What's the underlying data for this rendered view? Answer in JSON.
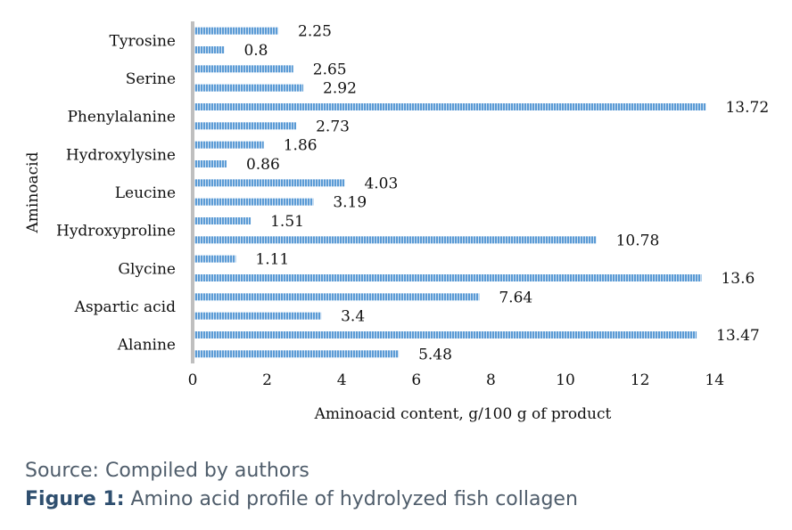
{
  "chart_data": {
    "type": "bar",
    "orientation": "horizontal",
    "xlabel": "Aminoacid content, g/100 g of product",
    "ylabel": "Aminoacid",
    "xlim": [
      0,
      14
    ],
    "xticks": [
      "0",
      "2",
      "4",
      "6",
      "8",
      "10",
      "12",
      "14"
    ],
    "category_labels": [
      "Alanine",
      "Aspartic acid",
      "Glycine",
      "Hydroxyproline",
      "Leucine",
      "Hydroxylysine",
      "Phenylalanine",
      "Serine",
      "Tyrosine"
    ],
    "bars_bottom_to_top": [
      5.48,
      13.47,
      3.4,
      7.64,
      13.6,
      1.11,
      10.78,
      1.51,
      3.19,
      4.03,
      0.86,
      1.86,
      2.73,
      13.72,
      2.92,
      2.65,
      0.8,
      2.25
    ],
    "value_labels_bottom_to_top": [
      "5.48",
      "13.47",
      "3.4",
      "7.64",
      "13.6",
      "1.11",
      "10.78",
      "1.51",
      "3.19",
      "4.03",
      "0.86",
      "1.86",
      "2.73",
      "13.72",
      "2.92",
      "2.65",
      "0.8",
      "2.25"
    ],
    "bar_color": "#5b9bd5",
    "axis_color": "#bfbfbf",
    "grid": false,
    "legend": "none"
  },
  "caption": {
    "source": "Source: Compiled by authors",
    "figure_label": "Figure 1:",
    "figure_text": " Amino acid profile of hydrolyzed fish collagen"
  }
}
